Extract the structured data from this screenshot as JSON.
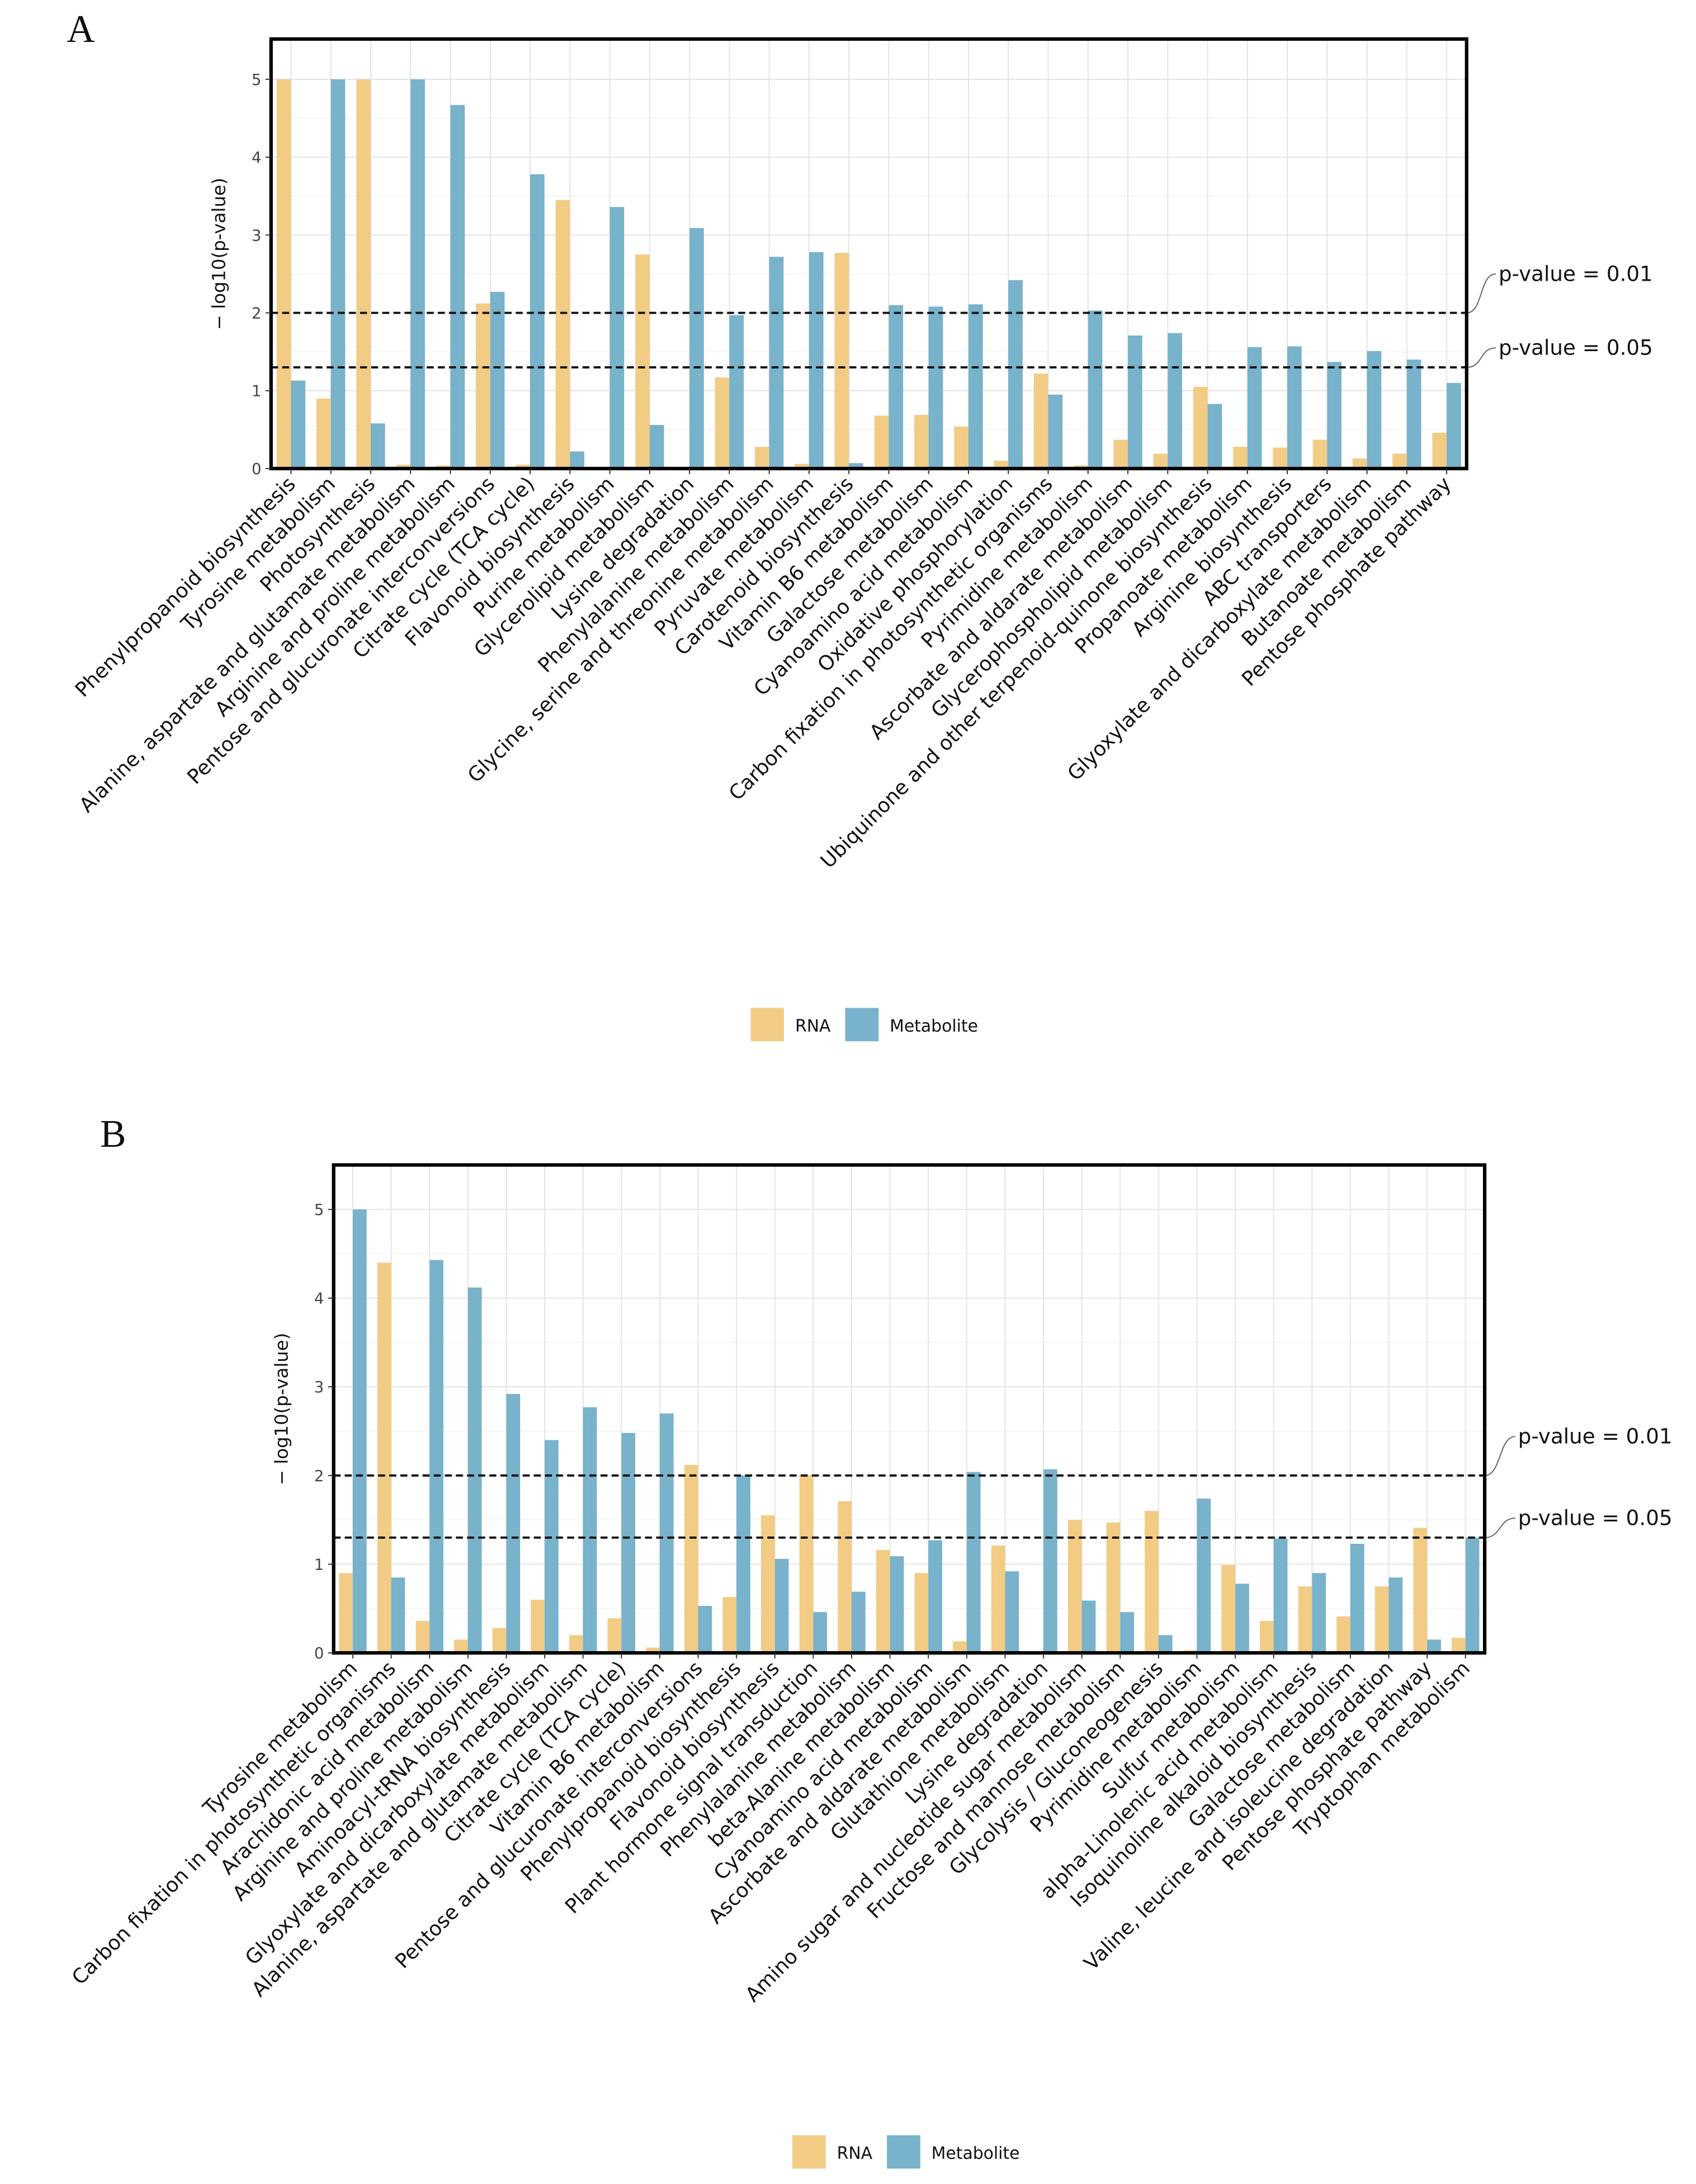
{
  "colors": {
    "RNA": "#F2CB85",
    "Metabolite": "#78B2CB"
  },
  "chart_data": [
    {
      "type": "bar",
      "panel_label": "A",
      "ylabel": "− log10(p-value)",
      "ylim": [
        0,
        5.5
      ],
      "yticks": [
        0,
        1,
        2,
        3,
        4,
        5
      ],
      "grid": true,
      "legend_position": "bottom",
      "legend": [
        "RNA",
        "Metabolite"
      ],
      "thresholds": [
        {
          "value": 2,
          "label": "p-value = 0.01"
        },
        {
          "value": 1.3,
          "label": "p-value = 0.05"
        }
      ],
      "categories": [
        "Phenylpropanoid biosynthesis",
        "Tyrosine metabolism",
        "Photosynthesis",
        "Alanine, aspartate and glutamate metabolism",
        "Arginine and proline metabolism",
        "Pentose and glucuronate interconversions",
        "Citrate cycle (TCA cycle)",
        "Flavonoid biosynthesis",
        "Purine metabolism",
        "Glycerolipid metabolism",
        "Lysine degradation",
        "Phenylalanine metabolism",
        "Glycine, serine and threonine metabolism",
        "Pyruvate metabolism",
        "Carotenoid biosynthesis",
        "Vitamin B6 metabolism",
        "Galactose metabolism",
        "Cyanoamino acid metabolism",
        "Oxidative phosphorylation",
        "Carbon fixation in photosynthetic organisms",
        "Pyrimidine metabolism",
        "Ascorbate and aldarate metabolism",
        "Glycerophospholipid metabolism",
        "Ubiquinone and other terpenoid-quinone biosynthesis",
        "Propanoate metabolism",
        "Arginine biosynthesis",
        "ABC transporters",
        "Glyoxylate and dicarboxylate metabolism",
        "Butanoate metabolism",
        "Pentose phosphate pathway"
      ],
      "series": [
        {
          "name": "RNA",
          "values": [
            5,
            0.9,
            5,
            0.05,
            0.04,
            2.12,
            0.05,
            3.45,
            0,
            2.75,
            0.02,
            1.17,
            0.28,
            0.06,
            2.77,
            0.68,
            0.69,
            0.54,
            0.1,
            1.22,
            0.04,
            0.37,
            0.19,
            1.05,
            0.28,
            0.27,
            0.37,
            0.13,
            0.19,
            0.46
          ]
        },
        {
          "name": "Metabolite",
          "values": [
            1.13,
            5,
            0.58,
            5,
            4.67,
            2.27,
            3.78,
            0.22,
            3.36,
            0.56,
            3.09,
            1.97,
            2.72,
            2.78,
            0.07,
            2.1,
            2.08,
            2.11,
            2.42,
            0.95,
            2.03,
            1.71,
            1.74,
            0.83,
            1.56,
            1.57,
            1.37,
            1.51,
            1.4,
            1.1
          ]
        }
      ]
    },
    {
      "type": "bar",
      "panel_label": "B",
      "ylabel": "− log10(p-value)",
      "ylim": [
        0,
        5.5
      ],
      "yticks": [
        0,
        1,
        2,
        3,
        4,
        5
      ],
      "grid": true,
      "legend_position": "bottom",
      "legend": [
        "RNA",
        "Metabolite"
      ],
      "thresholds": [
        {
          "value": 2,
          "label": "p-value = 0.01"
        },
        {
          "value": 1.3,
          "label": "p-value = 0.05"
        }
      ],
      "categories": [
        "Tyrosine metabolism",
        "Carbon fixation in photosynthetic organisms",
        "Arachidonic acid metabolism",
        "Arginine and proline metabolism",
        "Aminoacyl-tRNA biosynthesis",
        "Glyoxylate and dicarboxylate metabolism",
        "Alanine, aspartate and glutamate metabolism",
        "Citrate cycle (TCA cycle)",
        "Vitamin B6 metabolism",
        "Pentose and glucuronate interconversions",
        "Phenylpropanoid biosynthesis",
        "Flavonoid biosynthesis",
        "Plant hormone signal transduction",
        "Phenylalanine metabolism",
        "beta-Alanine metabolism",
        "Cyanoamino acid metabolism",
        "Ascorbate and aldarate metabolism",
        "Glutathione metabolism",
        "Lysine degradation",
        "Amino sugar and nucleotide sugar metabolism",
        "Fructose and mannose metabolism",
        "Glycolysis / Gluconeogenesis",
        "Pyrimidine metabolism",
        "Sulfur metabolism",
        "alpha-Linolenic acid metabolism",
        "Isoquinoline alkaloid biosynthesis",
        "Galactose metabolism",
        "Valine, leucine and isoleucine degradation",
        "Pentose phosphate pathway",
        "Tryptophan metabolism"
      ],
      "series": [
        {
          "name": "RNA",
          "values": [
            0.9,
            4.4,
            0.36,
            0.15,
            0.28,
            0.6,
            0.2,
            0.39,
            0.06,
            2.12,
            0.63,
            1.55,
            2.0,
            1.71,
            1.16,
            0.9,
            0.13,
            1.21,
            0,
            1.5,
            1.47,
            1.6,
            0.03,
            0.99,
            0.36,
            0.75,
            0.41,
            0.75,
            1.41,
            0.17
          ]
        },
        {
          "name": "Metabolite",
          "values": [
            5,
            0.85,
            4.43,
            4.12,
            2.92,
            2.4,
            2.77,
            2.48,
            2.7,
            0.53,
            2.0,
            1.06,
            0.46,
            0.69,
            1.09,
            1.27,
            2.04,
            0.92,
            2.07,
            0.59,
            0.46,
            0.2,
            1.74,
            0.78,
            1.29,
            0.9,
            1.23,
            0.85,
            0.15,
            1.3
          ]
        }
      ]
    }
  ]
}
